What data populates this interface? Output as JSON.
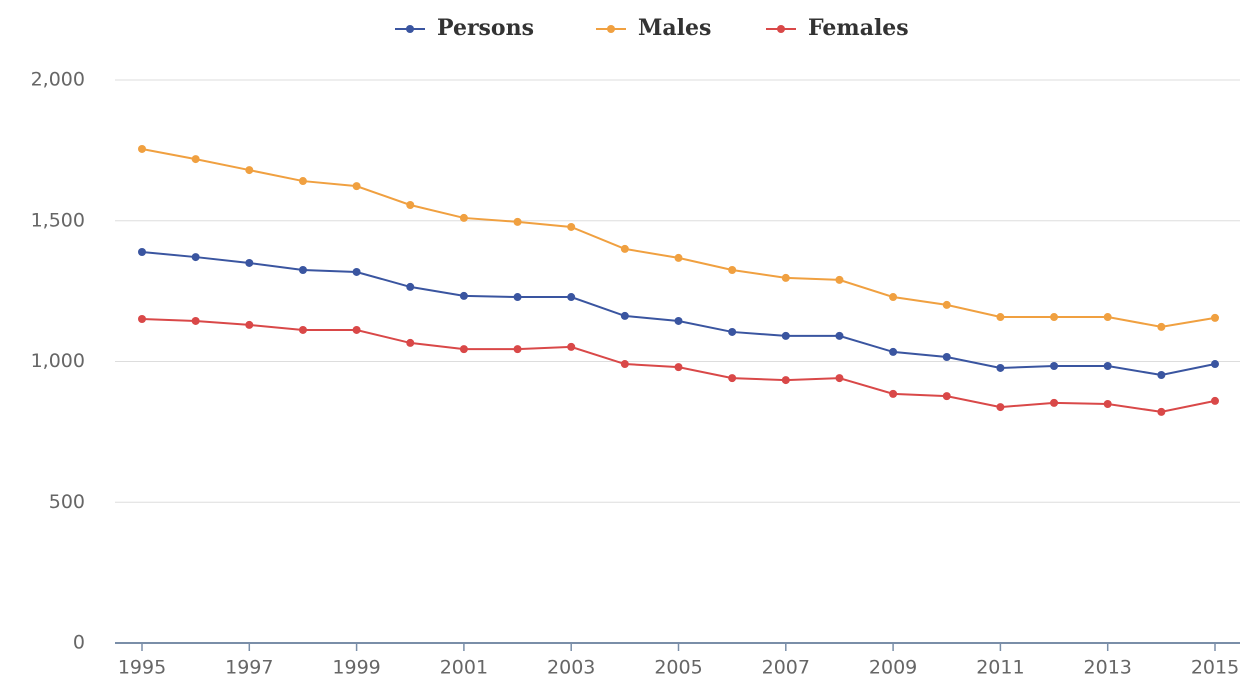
{
  "chart_data": {
    "type": "line",
    "x": [
      1995,
      1996,
      1997,
      1998,
      1999,
      2000,
      2001,
      2002,
      2003,
      2004,
      2005,
      2006,
      2007,
      2008,
      2009,
      2010,
      2011,
      2012,
      2013,
      2014,
      2015
    ],
    "series": [
      {
        "name": "Persons",
        "color": "#3a55a0",
        "values": [
          1389,
          1371,
          1350,
          1325,
          1318,
          1265,
          1233,
          1229,
          1229,
          1162,
          1144,
          1105,
          1091,
          1091,
          1034,
          1016,
          977,
          984,
          984,
          952,
          991
        ]
      },
      {
        "name": "Males",
        "color": "#f0a040",
        "values": [
          1755,
          1719,
          1680,
          1641,
          1623,
          1556,
          1510,
          1496,
          1478,
          1400,
          1368,
          1325,
          1297,
          1290,
          1229,
          1201,
          1158,
          1158,
          1158,
          1123,
          1155
        ]
      },
      {
        "name": "Females",
        "color": "#d94848",
        "values": [
          1151,
          1144,
          1130,
          1112,
          1112,
          1066,
          1044,
          1044,
          1052,
          991,
          980,
          941,
          934,
          941,
          885,
          877,
          838,
          853,
          849,
          821,
          860
        ]
      }
    ],
    "xlim": [
      1995,
      2015
    ],
    "xticks": [
      1995,
      1997,
      1999,
      2001,
      2003,
      2005,
      2007,
      2009,
      2011,
      2013,
      2015
    ],
    "ylim": [
      0,
      2000
    ],
    "yticks": [
      0,
      500,
      {
        "value": 1000,
        "label": "1,000"
      },
      {
        "value": 1500,
        "label": "1,500"
      },
      {
        "value": 2000,
        "label": "2,000"
      }
    ],
    "grid": true,
    "legend": "top"
  }
}
